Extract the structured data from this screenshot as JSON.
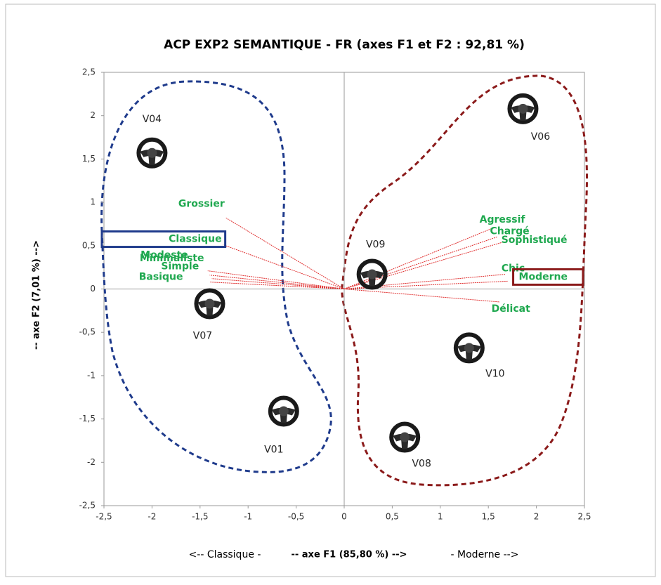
{
  "chart_data": {
    "type": "scatter",
    "title": "ACP EXP2 SEMANTIQUE - FR (axes F1 et F2 : 92,81 %)",
    "xlabel": "-- axe F1 (85,80 %) -->",
    "xlabel_left": "<-- Classique -",
    "xlabel_right": "- Moderne -->",
    "ylabel": "-- axe F2 (7,01 %) -->",
    "xlim": [
      -2.5,
      2.5
    ],
    "ylim": [
      -2.5,
      2.5
    ],
    "xticks": [
      {
        "value": -2.5,
        "label": "-2,5"
      },
      -2,
      {
        "value": -1.5,
        "label": "-1,5"
      },
      -1,
      {
        "value": -0.5,
        "label": "-0,5"
      },
      0,
      {
        "value": 0.5,
        "label": "0,5"
      },
      1,
      {
        "value": 1.5,
        "label": "1,5"
      },
      2,
      {
        "value": 2.5,
        "label": "2,5"
      }
    ],
    "yticks": [
      {
        "value": -2.5,
        "label": "-2,5"
      },
      -2,
      {
        "value": -1.5,
        "label": "-1,5"
      },
      -1,
      {
        "value": -0.5,
        "label": "-0,5"
      },
      0,
      {
        "value": 0.5,
        "label": "0,5"
      },
      1,
      {
        "value": 1.5,
        "label": "1,5"
      },
      2,
      {
        "value": 2.5,
        "label": "2,5"
      }
    ],
    "points": {
      "names": [
        "V04",
        "V07",
        "V01",
        "V09",
        "V06",
        "V10",
        "V08"
      ],
      "x": [
        -2.0,
        -1.4,
        -0.63,
        0.29,
        1.86,
        1.3,
        0.63
      ],
      "y": [
        1.57,
        -0.17,
        -1.41,
        0.17,
        2.08,
        -0.68,
        -1.71
      ]
    },
    "variables": {
      "color": "#1fa84f",
      "line_color": "#e03030",
      "names": [
        "Grossier",
        "Classique",
        "Modeste",
        "Minimaliste",
        "Simple",
        "Basique",
        "Agressif",
        "Chargé",
        "Sophistiqué",
        "Chic",
        "Moderne",
        "Délicat"
      ],
      "x": [
        -1.23,
        -1.26,
        -1.42,
        -1.4,
        -1.38,
        -1.4,
        1.54,
        1.59,
        1.65,
        1.68,
        1.7,
        1.62
      ],
      "y": [
        0.82,
        0.51,
        0.21,
        0.16,
        0.12,
        0.08,
        0.7,
        0.6,
        0.54,
        0.17,
        0.09,
        -0.15
      ]
    },
    "boxes": {
      "Classique": "#1f3b8c",
      "Moderne": "#8b1a1a"
    }
  }
}
